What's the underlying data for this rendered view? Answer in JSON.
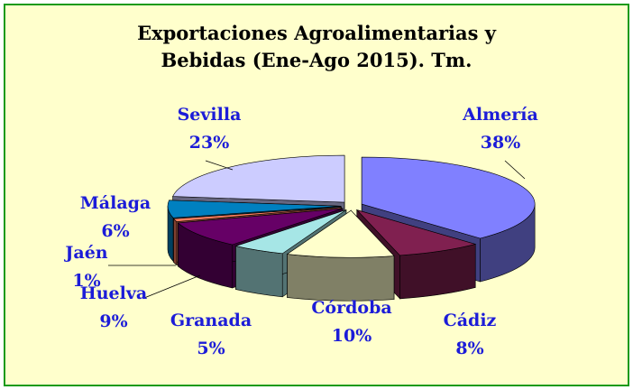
{
  "chart_data": {
    "type": "pie3d",
    "title": "Exportaciones Agroalimentarias y Bebidas (Ene-Ago 2015). Tm.",
    "categories": [
      "Almería",
      "Cádiz",
      "Córdoba",
      "Granada",
      "Huelva",
      "Jaén",
      "Málaga",
      "Sevilla"
    ],
    "values": [
      38,
      8,
      10,
      5,
      9,
      1,
      6,
      23
    ],
    "value_labels": [
      "38%",
      "8%",
      "10%",
      "5%",
      "9%",
      "1%",
      "6%",
      "23%"
    ],
    "colors": [
      "#8080ff",
      "#802050",
      "#ffffcc",
      "#a6e6e6",
      "#660066",
      "#ff8060",
      "#0080c0",
      "#ccccff"
    ]
  }
}
